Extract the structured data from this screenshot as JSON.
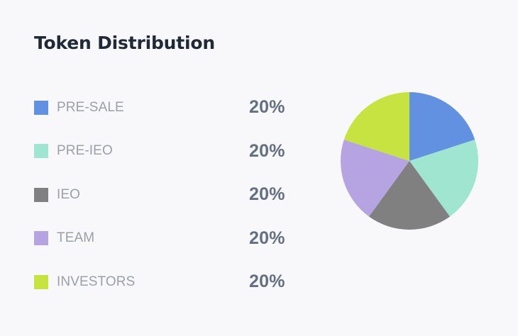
{
  "header": {
    "title": "Token Distribution"
  },
  "chart_data": {
    "type": "pie",
    "title": "Token Distribution",
    "unit": "%",
    "categories": [
      "PRE-SALE",
      "PRE-IEO",
      "IEO",
      "TEAM",
      "INVESTORS"
    ],
    "values": [
      20,
      20,
      20,
      20,
      20
    ],
    "value_labels": [
      "20%",
      "20%",
      "20%",
      "20%",
      "20%"
    ],
    "colors": [
      "#6391e1",
      "#a0e5d0",
      "#808080",
      "#b6a3e2",
      "#c7e342"
    ],
    "legend_position": "left"
  }
}
